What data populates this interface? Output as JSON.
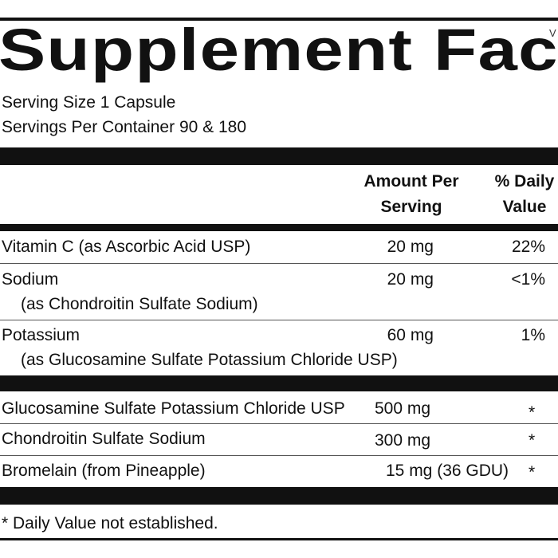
{
  "title": "Supplement Facts",
  "corner_mark": "V",
  "serving_size": "Serving Size 1 Capsule",
  "servings_per_container": "Servings Per Container 90  & 180",
  "headers": {
    "amount_line1": "Amount Per",
    "amount_line2": "Serving",
    "dv_line1": "% Daily",
    "dv_line2": "Value"
  },
  "nutrients": [
    {
      "name": "Vitamin C (as Ascorbic Acid USP)",
      "sub": "",
      "amount": "20 mg",
      "dv": "22%"
    },
    {
      "name": "Sodium",
      "sub": "(as Chondroitin Sulfate Sodium)",
      "amount": "20 mg",
      "dv": "<1%"
    },
    {
      "name": "Potassium",
      "sub": "(as Glucosamine Sulfate Potassium Chloride USP)",
      "amount": "60 mg",
      "dv": "1%"
    }
  ],
  "ingredients": [
    {
      "name": "Glucosamine Sulfate Potassium Chloride USP",
      "amount": "500 mg",
      "dv": "*"
    },
    {
      "name": "Chondroitin Sulfate Sodium",
      "amount": "300 mg",
      "dv": "*"
    },
    {
      "name": "Bromelain (from Pineapple)",
      "amount": "15 mg (36 GDU)",
      "dv": "*"
    }
  ],
  "footnote": "* Daily Value not established."
}
